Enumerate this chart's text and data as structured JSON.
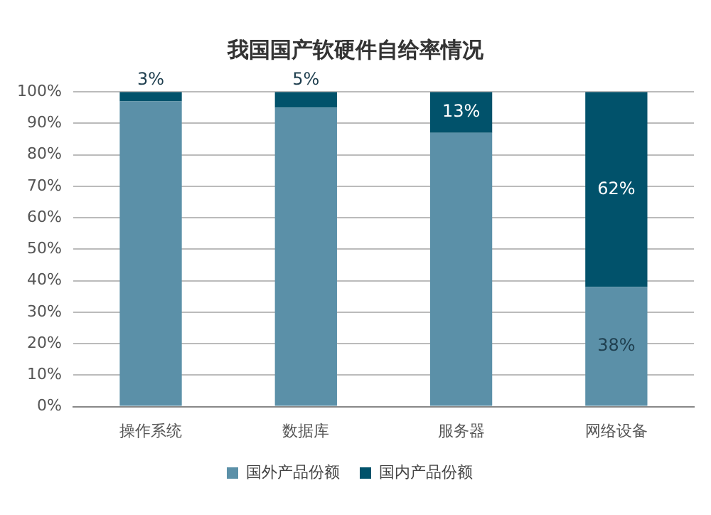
{
  "chart_data": {
    "type": "bar",
    "title": "我国国产软硬件自给率情况",
    "stacked": true,
    "categories": [
      "操作系统",
      "数据库",
      "服务器",
      "网络设备"
    ],
    "series": [
      {
        "name": "国外产品份额",
        "color": "#5b90a8",
        "values": [
          97,
          95,
          87,
          38
        ],
        "value_labels": [
          null,
          null,
          null,
          "38%"
        ]
      },
      {
        "name": "国内产品份额",
        "color": "#01526b",
        "values": [
          3,
          5,
          13,
          62
        ],
        "value_labels": [
          "3%",
          "5%",
          "13%",
          "62%"
        ]
      }
    ],
    "ylim": [
      0,
      100
    ],
    "yticks": [
      {
        "value": 0,
        "label": "0%"
      },
      {
        "value": 10,
        "label": "10%"
      },
      {
        "value": 20,
        "label": "20%"
      },
      {
        "value": 30,
        "label": "30%"
      },
      {
        "value": 40,
        "label": "40%"
      },
      {
        "value": 50,
        "label": "50%"
      },
      {
        "value": 60,
        "label": "60%"
      },
      {
        "value": 70,
        "label": "70%"
      },
      {
        "value": 80,
        "label": "80%"
      },
      {
        "value": 90,
        "label": "90%"
      },
      {
        "value": 100,
        "label": "100%"
      }
    ],
    "grid": "y",
    "legend": "bottom"
  }
}
